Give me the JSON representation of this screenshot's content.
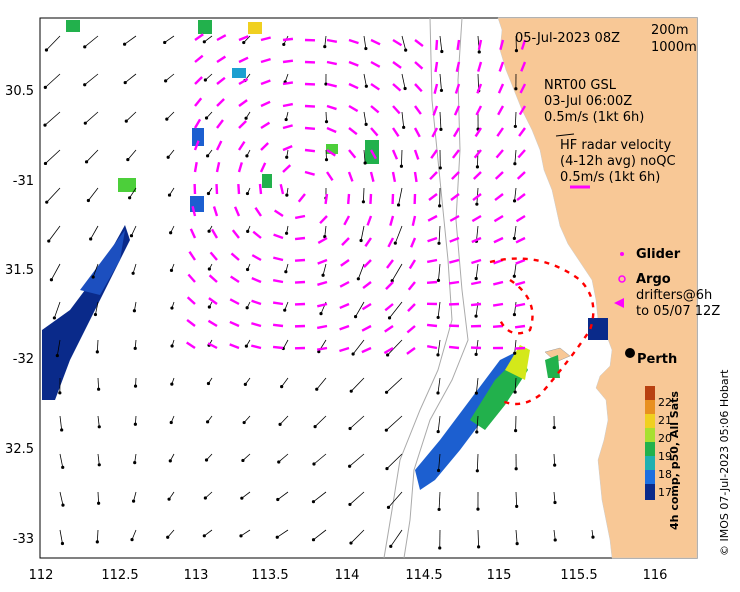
{
  "map": {
    "lon_ticks": [
      "112",
      "112.5",
      "113",
      "113.5",
      "114",
      "114.5",
      "115",
      "115.5",
      "116"
    ],
    "lat_ticks": [
      "30.5",
      "-31",
      "31.5",
      "-32",
      "32.5",
      "-33"
    ],
    "timestamp": "05-Jul-2023 08Z",
    "contours": [
      "200m",
      "1000m"
    ],
    "nrt_title": "NRT00 GSL",
    "nrt_date": "03-Jul 06:00Z",
    "nrt_scale": "0.5m/s (1kt 6h)",
    "hf_title": "HF radar velocity",
    "hf_sub": "(4-12h avg) noQC",
    "hf_scale": "0.5m/s (1kt 6h)",
    "glider_label": "Glider",
    "argo_label": "Argo",
    "drifters_label": "drifters@6h",
    "drifters_to": "to 05/07 12Z",
    "city": "Perth",
    "colorbar_label": "4h comp, p50, All Sats",
    "colorbar_ticks": [
      "22",
      "21",
      "20",
      "19",
      "18",
      "17"
    ],
    "credit": "© IMOS 07-Jul-2023 05:06 Hobart",
    "colors": {
      "land": "#f8c896",
      "hf_vectors": "#ff00ff",
      "drifter": "#ff0000",
      "model_vectors": "#000000"
    }
  }
}
